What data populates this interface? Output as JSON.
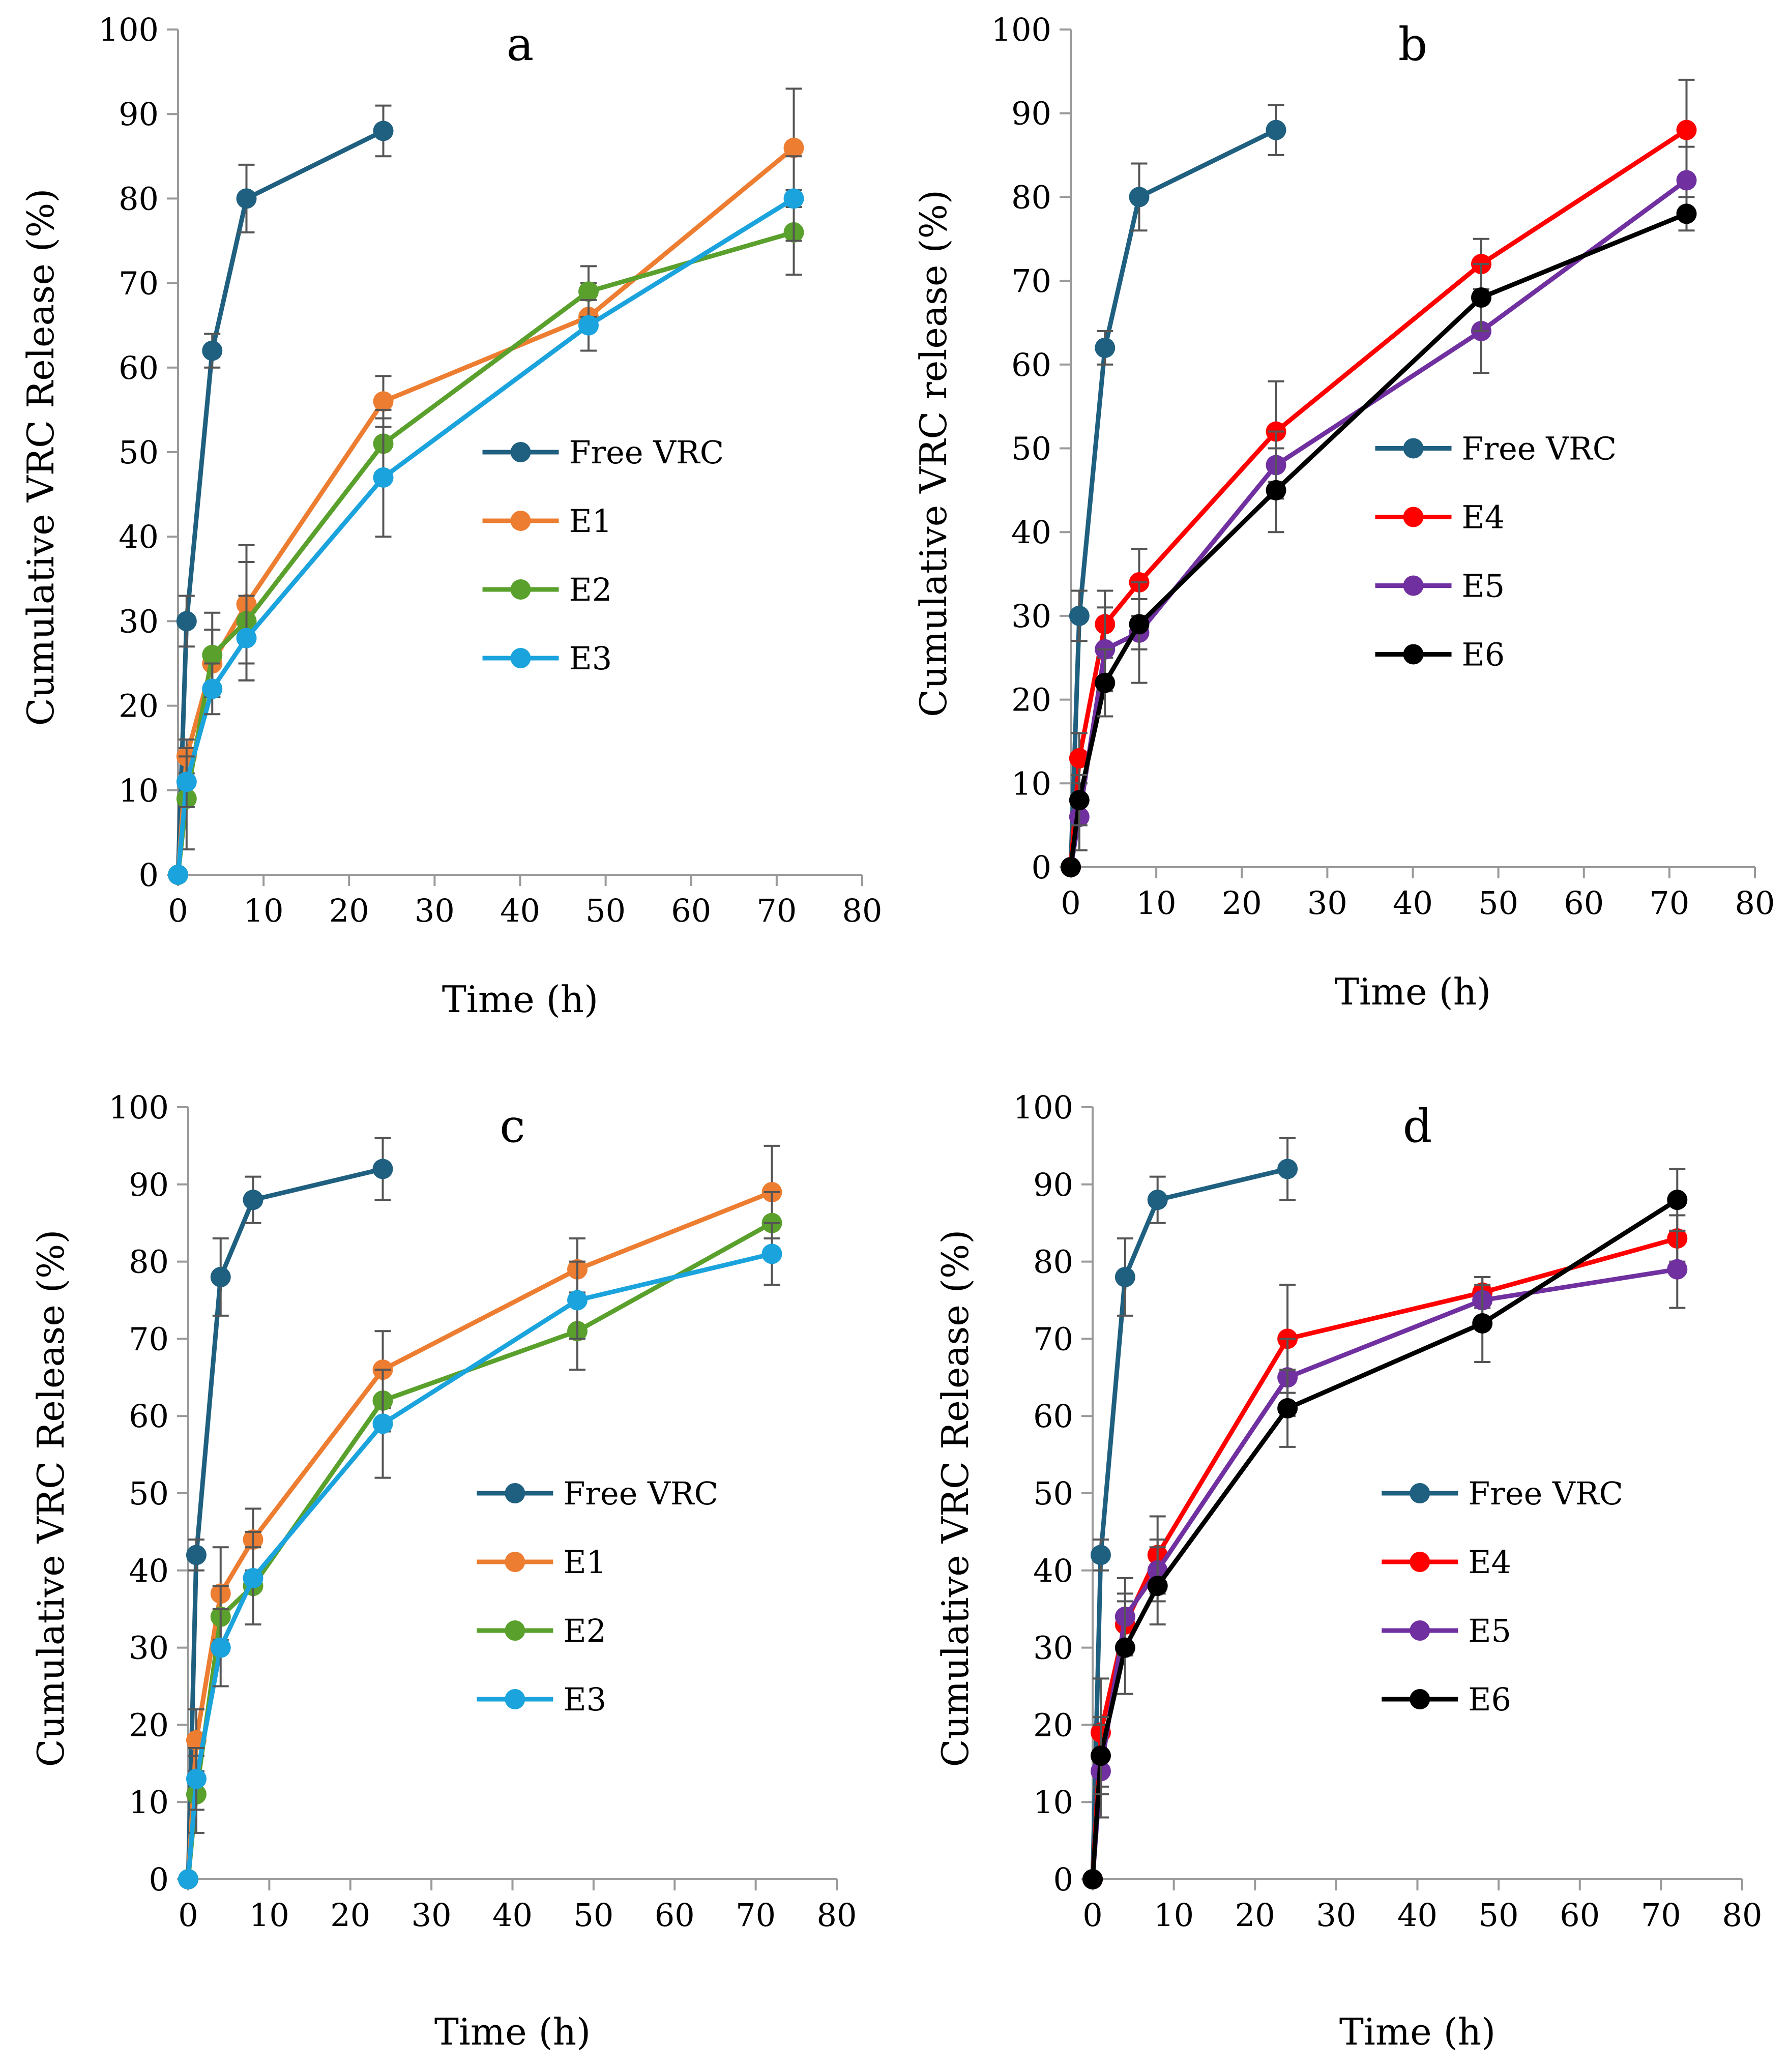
{
  "chart_data": [
    {
      "type": "line",
      "title": "a",
      "xlabel": "Time (h)",
      "ylabel": "Cumulative VRC Release (%)",
      "xlim": [
        0,
        80
      ],
      "ylim": [
        0,
        100
      ],
      "xticks": [
        "0",
        "10",
        "20",
        "30",
        "40",
        "50",
        "60",
        "70",
        "80"
      ],
      "yticks": [
        "0",
        "10",
        "20",
        "30",
        "40",
        "50",
        "60",
        "70",
        "80",
        "90",
        "100"
      ],
      "grid": false,
      "legend_position": "right",
      "series": [
        {
          "name": "Free VRC",
          "color": "#1f5f7f",
          "x": [
            0,
            1,
            4,
            8,
            24
          ],
          "values": [
            0,
            30,
            62,
            80,
            88
          ],
          "errors": [
            0,
            3,
            2,
            4,
            3
          ]
        },
        {
          "name": "E1",
          "color": "#ed7d31",
          "x": [
            0,
            1,
            4,
            8,
            24,
            48,
            72
          ],
          "values": [
            0,
            14,
            25,
            32,
            56,
            66,
            86
          ],
          "errors": [
            0,
            2,
            4,
            7,
            3,
            4,
            7
          ]
        },
        {
          "name": "E2",
          "color": "#5aa02c",
          "x": [
            0,
            1,
            4,
            8,
            24,
            48,
            72
          ],
          "values": [
            0,
            9,
            26,
            30,
            51,
            69,
            76
          ],
          "errors": [
            0,
            6,
            5,
            7,
            4,
            3,
            5
          ]
        },
        {
          "name": "E3",
          "color": "#1aa3dc",
          "x": [
            0,
            1,
            4,
            8,
            24,
            48,
            72
          ],
          "values": [
            0,
            11,
            22,
            28,
            47,
            65,
            80
          ],
          "errors": [
            0,
            3,
            3,
            5,
            7,
            3,
            5
          ]
        }
      ]
    },
    {
      "type": "line",
      "title": "b",
      "xlabel": "Time (h)",
      "ylabel": "Cumulative VRC release (%)",
      "xlim": [
        0,
        80
      ],
      "ylim": [
        0,
        100
      ],
      "xticks": [
        "0",
        "10",
        "20",
        "30",
        "40",
        "50",
        "60",
        "70",
        "80"
      ],
      "yticks": [
        "0",
        "10",
        "20",
        "30",
        "40",
        "50",
        "60",
        "70",
        "80",
        "90",
        "100"
      ],
      "grid": false,
      "legend_position": "right",
      "series": [
        {
          "name": "Free VRC",
          "color": "#1f5f7f",
          "x": [
            0,
            1,
            4,
            8,
            24
          ],
          "values": [
            0,
            30,
            62,
            80,
            88
          ],
          "errors": [
            0,
            3,
            2,
            4,
            3
          ]
        },
        {
          "name": "E4",
          "color": "#ff0000",
          "x": [
            0,
            1,
            4,
            8,
            24,
            48,
            72
          ],
          "values": [
            0,
            13,
            29,
            34,
            52,
            72,
            88
          ],
          "errors": [
            0,
            3,
            4,
            4,
            6,
            3,
            6
          ]
        },
        {
          "name": "E5",
          "color": "#7030a0",
          "x": [
            0,
            1,
            4,
            8,
            24,
            48,
            72
          ],
          "values": [
            0,
            6,
            26,
            28,
            48,
            64,
            82
          ],
          "errors": [
            0,
            4,
            5,
            6,
            4,
            5,
            4
          ]
        },
        {
          "name": "E6",
          "color": "#000000",
          "x": [
            0,
            1,
            4,
            8,
            24,
            48,
            72
          ],
          "values": [
            0,
            8,
            22,
            29,
            45,
            68,
            78
          ],
          "errors": [
            0,
            3,
            4,
            3,
            5,
            4,
            2
          ]
        }
      ]
    },
    {
      "type": "line",
      "title": "c",
      "xlabel": "Time (h)",
      "ylabel": "Cumulative VRC Release (%)",
      "xlim": [
        0,
        80
      ],
      "ylim": [
        0,
        100
      ],
      "xticks": [
        "0",
        "10",
        "20",
        "30",
        "40",
        "50",
        "60",
        "70",
        "80"
      ],
      "yticks": [
        "0",
        "10",
        "20",
        "30",
        "40",
        "50",
        "60",
        "70",
        "80",
        "90",
        "100"
      ],
      "grid": false,
      "legend_position": "right",
      "series": [
        {
          "name": "Free VRC",
          "color": "#1f5f7f",
          "x": [
            0,
            1,
            4,
            8,
            24
          ],
          "values": [
            0,
            42,
            78,
            88,
            92
          ],
          "errors": [
            0,
            2,
            5,
            3,
            4
          ]
        },
        {
          "name": "E1",
          "color": "#ed7d31",
          "x": [
            0,
            1,
            4,
            8,
            24,
            48,
            72
          ],
          "values": [
            0,
            18,
            37,
            44,
            66,
            79,
            89
          ],
          "errors": [
            0,
            4,
            6,
            4,
            5,
            4,
            6
          ]
        },
        {
          "name": "E2",
          "color": "#5aa02c",
          "x": [
            0,
            1,
            4,
            8,
            24,
            48,
            72
          ],
          "values": [
            0,
            11,
            34,
            38,
            62,
            71,
            85
          ],
          "errors": [
            0,
            5,
            4,
            5,
            4,
            5,
            4
          ]
        },
        {
          "name": "E3",
          "color": "#1aa3dc",
          "x": [
            0,
            1,
            4,
            8,
            24,
            48,
            72
          ],
          "values": [
            0,
            13,
            30,
            39,
            59,
            75,
            81
          ],
          "errors": [
            0,
            4,
            5,
            6,
            7,
            5,
            4
          ]
        }
      ]
    },
    {
      "type": "line",
      "title": "d",
      "xlabel": "Time (h)",
      "ylabel": "Cumulative VRC Release (%)",
      "xlim": [
        0,
        80
      ],
      "ylim": [
        0,
        100
      ],
      "xticks": [
        "0",
        "10",
        "20",
        "30",
        "40",
        "50",
        "60",
        "70",
        "80"
      ],
      "yticks": [
        "0",
        "10",
        "20",
        "30",
        "40",
        "50",
        "60",
        "70",
        "80",
        "90",
        "100"
      ],
      "grid": false,
      "legend_position": "right",
      "series": [
        {
          "name": "Free VRC",
          "color": "#1f5f7f",
          "x": [
            0,
            1,
            4,
            8,
            24
          ],
          "values": [
            0,
            42,
            78,
            88,
            92
          ],
          "errors": [
            0,
            2,
            5,
            3,
            4
          ]
        },
        {
          "name": "E4",
          "color": "#ff0000",
          "x": [
            0,
            1,
            4,
            8,
            24,
            48,
            72
          ],
          "values": [
            0,
            19,
            33,
            42,
            70,
            76,
            83
          ],
          "errors": [
            0,
            7,
            4,
            5,
            7,
            2,
            3
          ]
        },
        {
          "name": "E5",
          "color": "#7030a0",
          "x": [
            0,
            1,
            4,
            8,
            24,
            48,
            72
          ],
          "values": [
            0,
            14,
            34,
            40,
            65,
            75,
            79
          ],
          "errors": [
            0,
            6,
            5,
            4,
            5,
            3,
            5
          ]
        },
        {
          "name": "E6",
          "color": "#000000",
          "x": [
            0,
            1,
            4,
            8,
            24,
            48,
            72
          ],
          "values": [
            0,
            16,
            30,
            38,
            61,
            72,
            88
          ],
          "errors": [
            0,
            5,
            6,
            5,
            5,
            5,
            4
          ]
        }
      ]
    }
  ]
}
